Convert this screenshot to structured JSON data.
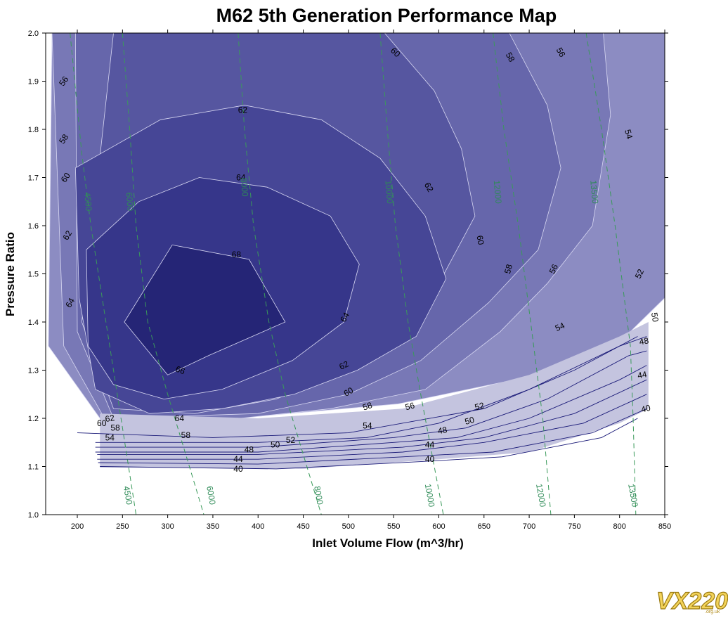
{
  "chart_data": {
    "type": "contour",
    "title": "M62 5th Generation Performance Map",
    "xlabel": "Inlet Volume Flow (m^3/hr)",
    "ylabel": "Pressure Ratio",
    "xlim": [
      165,
      850
    ],
    "ylim": [
      1.0,
      2.0
    ],
    "xticks": [
      "200",
      "250",
      "300",
      "350",
      "400",
      "450",
      "500",
      "550",
      "600",
      "650",
      "700",
      "750",
      "800",
      "850"
    ],
    "yticks": [
      "1.0",
      "1.1",
      "1.2",
      "1.3",
      "1.4",
      "1.5",
      "1.6",
      "1.7",
      "1.8",
      "1.9",
      "2.0"
    ],
    "grid": false,
    "efficiency_bands": [
      {
        "level": "56",
        "region": [
          [
            172,
            2.0
          ],
          [
            850,
            2.0
          ],
          [
            850,
            1.45
          ],
          [
            812,
            1.38
          ],
          [
            735,
            1.3
          ],
          [
            555,
            1.23
          ],
          [
            375,
            1.2
          ],
          [
            225,
            1.2
          ],
          [
            168,
            1.35
          ]
        ]
      },
      {
        "level": "58",
        "region": [
          [
            172,
            2.0
          ],
          [
            782,
            2.0
          ],
          [
            790,
            1.83
          ],
          [
            770,
            1.6
          ],
          [
            720,
            1.48
          ],
          [
            668,
            1.38
          ],
          [
            585,
            1.26
          ],
          [
            480,
            1.22
          ],
          [
            380,
            1.2
          ],
          [
            230,
            1.2
          ],
          [
            185,
            1.35
          ]
        ]
      },
      {
        "level": "60",
        "region": [
          [
            198,
            2.0
          ],
          [
            678,
            2.0
          ],
          [
            720,
            1.85
          ],
          [
            735,
            1.72
          ],
          [
            710,
            1.55
          ],
          [
            655,
            1.44
          ],
          [
            580,
            1.32
          ],
          [
            500,
            1.25
          ],
          [
            400,
            1.21
          ],
          [
            240,
            1.2
          ],
          [
            200,
            1.38
          ]
        ]
      },
      {
        "level": "62",
        "region": [
          [
            240,
            2.0
          ],
          [
            540,
            2.0
          ],
          [
            595,
            1.88
          ],
          [
            625,
            1.76
          ],
          [
            640,
            1.62
          ],
          [
            600,
            1.48
          ],
          [
            555,
            1.38
          ],
          [
            495,
            1.3
          ],
          [
            420,
            1.24
          ],
          [
            330,
            1.21
          ],
          [
            240,
            1.22
          ],
          [
            205,
            1.4
          ]
        ]
      },
      {
        "level": "64",
        "region": [
          [
            198,
            1.72
          ],
          [
            292,
            1.82
          ],
          [
            385,
            1.85
          ],
          [
            470,
            1.82
          ],
          [
            535,
            1.74
          ],
          [
            585,
            1.62
          ],
          [
            608,
            1.49
          ],
          [
            575,
            1.37
          ],
          [
            510,
            1.3
          ],
          [
            440,
            1.25
          ],
          [
            360,
            1.22
          ],
          [
            280,
            1.21
          ],
          [
            220,
            1.26
          ],
          [
            202,
            1.45
          ]
        ]
      },
      {
        "level": "66",
        "region": [
          [
            210,
            1.55
          ],
          [
            268,
            1.65
          ],
          [
            335,
            1.7
          ],
          [
            410,
            1.68
          ],
          [
            480,
            1.62
          ],
          [
            512,
            1.52
          ],
          [
            495,
            1.4
          ],
          [
            438,
            1.32
          ],
          [
            360,
            1.26
          ],
          [
            296,
            1.24
          ],
          [
            240,
            1.27
          ],
          [
            212,
            1.35
          ]
        ]
      },
      {
        "level": "68",
        "region": [
          [
            252,
            1.4
          ],
          [
            305,
            1.56
          ],
          [
            390,
            1.53
          ],
          [
            430,
            1.4
          ],
          [
            345,
            1.33
          ],
          [
            300,
            1.29
          ]
        ]
      }
    ],
    "efficiency_lines": [
      {
        "level": "54",
        "points": [
          [
            200,
            1.17
          ],
          [
            350,
            1.16
          ],
          [
            500,
            1.17
          ],
          [
            650,
            1.22
          ],
          [
            750,
            1.3
          ],
          [
            820,
            1.37
          ]
        ]
      },
      {
        "level": "52",
        "points": [
          [
            220,
            1.15
          ],
          [
            400,
            1.15
          ],
          [
            520,
            1.16
          ],
          [
            600,
            1.19
          ],
          [
            700,
            1.26
          ],
          [
            800,
            1.35
          ],
          [
            830,
            1.37
          ]
        ]
      },
      {
        "level": "50",
        "points": [
          [
            220,
            1.14
          ],
          [
            400,
            1.14
          ],
          [
            550,
            1.16
          ],
          [
            630,
            1.18
          ],
          [
            720,
            1.24
          ],
          [
            810,
            1.33
          ],
          [
            830,
            1.34
          ]
        ]
      },
      {
        "level": "48",
        "points": [
          [
            220,
            1.13
          ],
          [
            400,
            1.13
          ],
          [
            550,
            1.15
          ],
          [
            620,
            1.16
          ],
          [
            700,
            1.2
          ],
          [
            800,
            1.28
          ],
          [
            830,
            1.31
          ]
        ]
      },
      {
        "level": "46",
        "points": [
          [
            222,
            1.125
          ],
          [
            400,
            1.125
          ],
          [
            560,
            1.14
          ],
          [
            650,
            1.16
          ],
          [
            750,
            1.21
          ],
          [
            830,
            1.28
          ]
        ]
      },
      {
        "level": "44",
        "points": [
          [
            222,
            1.115
          ],
          [
            400,
            1.115
          ],
          [
            560,
            1.13
          ],
          [
            650,
            1.15
          ],
          [
            760,
            1.19
          ],
          [
            830,
            1.25
          ]
        ]
      },
      {
        "level": "42",
        "points": [
          [
            223,
            1.108
          ],
          [
            400,
            1.105
          ],
          [
            560,
            1.12
          ],
          [
            660,
            1.13
          ],
          [
            770,
            1.17
          ],
          [
            830,
            1.22
          ]
        ]
      },
      {
        "level": "40",
        "points": [
          [
            225,
            1.1
          ],
          [
            420,
            1.095
          ],
          [
            580,
            1.11
          ],
          [
            670,
            1.12
          ],
          [
            780,
            1.16
          ],
          [
            820,
            1.2
          ]
        ]
      }
    ],
    "contour_labels": [
      {
        "text": "56",
        "x": 185,
        "y": 1.9,
        "angle": -55
      },
      {
        "text": "58",
        "x": 185,
        "y": 1.78,
        "angle": -55
      },
      {
        "text": "60",
        "x": 187,
        "y": 1.7,
        "angle": -55
      },
      {
        "text": "62",
        "x": 189,
        "y": 1.58,
        "angle": -60
      },
      {
        "text": "64",
        "x": 192,
        "y": 1.44,
        "angle": -60
      },
      {
        "text": "62",
        "x": 236,
        "y": 1.2,
        "angle": -10
      },
      {
        "text": "60",
        "x": 227,
        "y": 1.19,
        "angle": 0
      },
      {
        "text": "58",
        "x": 242,
        "y": 1.18,
        "angle": 0
      },
      {
        "text": "54",
        "x": 236,
        "y": 1.16,
        "angle": 0
      },
      {
        "text": "64",
        "x": 313,
        "y": 1.2,
        "angle": 0
      },
      {
        "text": "58",
        "x": 320,
        "y": 1.165,
        "angle": 0
      },
      {
        "text": "66",
        "x": 314,
        "y": 1.3,
        "angle": 20
      },
      {
        "text": "68",
        "x": 376,
        "y": 1.54,
        "angle": 0
      },
      {
        "text": "64",
        "x": 381,
        "y": 1.7,
        "angle": 0
      },
      {
        "text": "62",
        "x": 383,
        "y": 1.84,
        "angle": 0
      },
      {
        "text": "60",
        "x": 552,
        "y": 1.96,
        "angle": 45
      },
      {
        "text": "58",
        "x": 679,
        "y": 1.95,
        "angle": 60
      },
      {
        "text": "56",
        "x": 735,
        "y": 1.96,
        "angle": 60
      },
      {
        "text": "54",
        "x": 810,
        "y": 1.79,
        "angle": 75
      },
      {
        "text": "62",
        "x": 589,
        "y": 1.68,
        "angle": 60
      },
      {
        "text": "60",
        "x": 646,
        "y": 1.57,
        "angle": 80
      },
      {
        "text": "58",
        "x": 677,
        "y": 1.51,
        "angle": -75
      },
      {
        "text": "56",
        "x": 727,
        "y": 1.51,
        "angle": -65
      },
      {
        "text": "52",
        "x": 822,
        "y": 1.5,
        "angle": -65
      },
      {
        "text": "50",
        "x": 839,
        "y": 1.41,
        "angle": 80
      },
      {
        "text": "64",
        "x": 496,
        "y": 1.41,
        "angle": -60
      },
      {
        "text": "62",
        "x": 495,
        "y": 1.31,
        "angle": -25
      },
      {
        "text": "60",
        "x": 500,
        "y": 1.255,
        "angle": -30
      },
      {
        "text": "58",
        "x": 521,
        "y": 1.225,
        "angle": -20
      },
      {
        "text": "56",
        "x": 568,
        "y": 1.225,
        "angle": -15
      },
      {
        "text": "54",
        "x": 734,
        "y": 1.39,
        "angle": -25
      },
      {
        "text": "52",
        "x": 645,
        "y": 1.225,
        "angle": -15
      },
      {
        "text": "50",
        "x": 634,
        "y": 1.195,
        "angle": -15
      },
      {
        "text": "48",
        "x": 604,
        "y": 1.175,
        "angle": -10
      },
      {
        "text": "54",
        "x": 521,
        "y": 1.185,
        "angle": 0
      },
      {
        "text": "52",
        "x": 436,
        "y": 1.155,
        "angle": 0
      },
      {
        "text": "50",
        "x": 419,
        "y": 1.145,
        "angle": 0
      },
      {
        "text": "48",
        "x": 390,
        "y": 1.135,
        "angle": 0
      },
      {
        "text": "44",
        "x": 590,
        "y": 1.145,
        "angle": 0
      },
      {
        "text": "40",
        "x": 590,
        "y": 1.115,
        "angle": 0
      },
      {
        "text": "44",
        "x": 378,
        "y": 1.115,
        "angle": 0
      },
      {
        "text": "40",
        "x": 378,
        "y": 1.095,
        "angle": 0
      },
      {
        "text": "48",
        "x": 827,
        "y": 1.36,
        "angle": -10
      },
      {
        "text": "44",
        "x": 825,
        "y": 1.29,
        "angle": -10
      },
      {
        "text": "40",
        "x": 829,
        "y": 1.22,
        "angle": -15
      }
    ],
    "speed_lines": [
      {
        "label": "4500",
        "points": [
          [
            192,
            2.0
          ],
          [
            205,
            1.75
          ],
          [
            215,
            1.6
          ],
          [
            240,
            1.3
          ],
          [
            265,
            1.0
          ]
        ]
      },
      {
        "label": "6000",
        "points": [
          [
            250,
            2.0
          ],
          [
            258,
            1.8
          ],
          [
            265,
            1.6
          ],
          [
            278,
            1.4
          ],
          [
            300,
            1.25
          ],
          [
            340,
            1.0
          ]
        ]
      },
      {
        "label": "8000",
        "points": [
          [
            378,
            2.0
          ],
          [
            385,
            1.8
          ],
          [
            395,
            1.6
          ],
          [
            412,
            1.4
          ],
          [
            430,
            1.25
          ],
          [
            470,
            1.0
          ]
        ]
      },
      {
        "label": "10000",
        "points": [
          [
            535,
            2.0
          ],
          [
            543,
            1.8
          ],
          [
            552,
            1.6
          ],
          [
            566,
            1.4
          ],
          [
            580,
            1.25
          ],
          [
            605,
            1.0
          ]
        ]
      },
      {
        "label": "12000",
        "points": [
          [
            660,
            2.0
          ],
          [
            672,
            1.8
          ],
          [
            688,
            1.6
          ],
          [
            705,
            1.35
          ],
          [
            715,
            1.2
          ],
          [
            724,
            1.0
          ]
        ]
      },
      {
        "label": "13500",
        "points": [
          [
            763,
            2.0
          ],
          [
            780,
            1.8
          ],
          [
            795,
            1.6
          ],
          [
            812,
            1.35
          ],
          [
            815,
            1.2
          ],
          [
            818,
            1.0
          ]
        ]
      }
    ],
    "speed_labels": [
      {
        "text": "4500",
        "x": 212,
        "y": 1.65,
        "angle": 85
      },
      {
        "text": "6000",
        "x": 258,
        "y": 1.65,
        "angle": 85
      },
      {
        "text": "8000",
        "x": 385,
        "y": 1.68,
        "angle": 85
      },
      {
        "text": "10000",
        "x": 545,
        "y": 1.67,
        "angle": 85
      },
      {
        "text": "12000",
        "x": 665,
        "y": 1.67,
        "angle": 85
      },
      {
        "text": "13500",
        "x": 772,
        "y": 1.67,
        "angle": 85
      },
      {
        "text": "4500",
        "x": 256,
        "y": 1.04,
        "angle": 80
      },
      {
        "text": "6000",
        "x": 348,
        "y": 1.04,
        "angle": 80
      },
      {
        "text": "8000",
        "x": 467,
        "y": 1.04,
        "angle": 80
      },
      {
        "text": "10000",
        "x": 590,
        "y": 1.04,
        "angle": 80
      },
      {
        "text": "12000",
        "x": 713,
        "y": 1.04,
        "angle": 80
      },
      {
        "text": "13500",
        "x": 815,
        "y": 1.04,
        "angle": 80
      }
    ],
    "colors": {
      "background": "#ffffff",
      "outer_fill": "#9d9dc9",
      "band_fills": [
        "#8c8cc2",
        "#7878b6",
        "#6666ab",
        "#5656a0",
        "#464696",
        "#36368a",
        "#252576"
      ],
      "band_line": "#d8d8f2",
      "low_fill": "#c4c4df",
      "low_line": "#1a1a78",
      "speed_line": "#3a9a5a"
    }
  },
  "logo": {
    "text": "VX220",
    "sub": ".org.uk"
  }
}
